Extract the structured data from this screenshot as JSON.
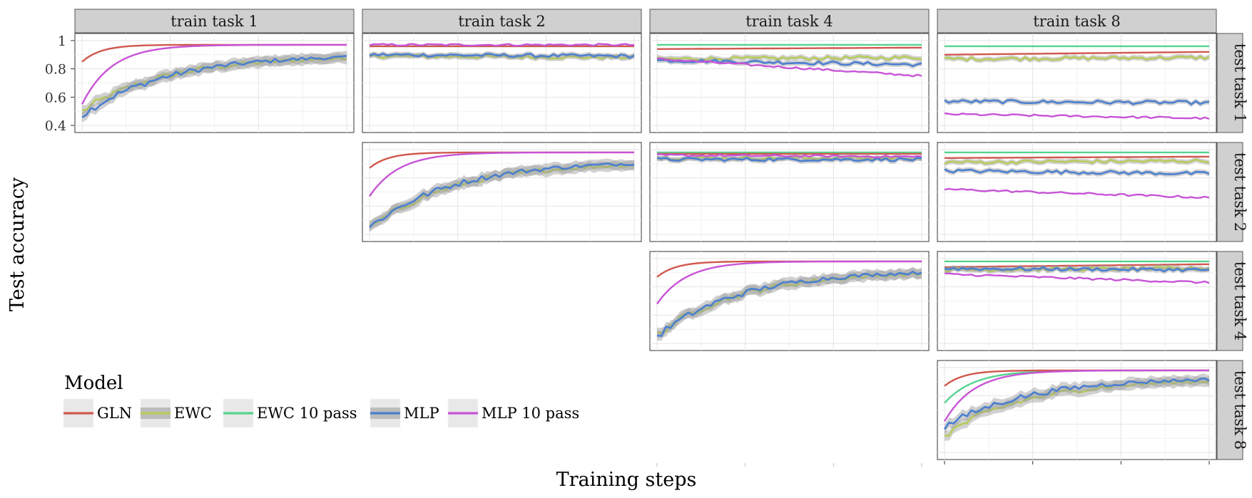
{
  "chart_data": {
    "type": "line",
    "title": "",
    "xlabel": "Training steps",
    "ylabel": "Test accuracy",
    "ylim": [
      0.35,
      1.05
    ],
    "y_ticks": [
      "1",
      "0.8",
      "0.6",
      "0.4"
    ],
    "y_tick_values": [
      1.0,
      0.8,
      0.6,
      0.4
    ],
    "column_labels": [
      "train task 1",
      "train task 2",
      "train task 4",
      "train task 8"
    ],
    "row_labels": [
      "test task 1",
      "test task 2",
      "test task 4",
      "test task 8"
    ],
    "legend": {
      "title": "Model",
      "entries": [
        {
          "name": "GLN",
          "color": "#d0584e"
        },
        {
          "name": "EWC",
          "color": "#b5cc5a"
        },
        {
          "name": "EWC 10 pass",
          "color": "#55d38f"
        },
        {
          "name": "MLP",
          "color": "#4a7fd0"
        },
        {
          "name": "MLP 10 pass",
          "color": "#c754d6"
        }
      ]
    },
    "panels": [
      {
        "row": 0,
        "col": 0,
        "shape": "learn",
        "series": {
          "GLN": [
            0.85,
            0.97
          ],
          "MLP 10 pass": [
            0.55,
            0.97
          ],
          "EWC": [
            0.5,
            0.89
          ],
          "MLP": [
            0.47,
            0.9
          ],
          "EWC 10 pass": null
        }
      },
      {
        "row": 0,
        "col": 1,
        "shape": "flat",
        "series": {
          "GLN": [
            0.96,
            0.96
          ],
          "MLP 10 pass": [
            0.97,
            0.97
          ],
          "EWC 10 pass": [
            0.96,
            0.96
          ],
          "EWC": [
            0.89,
            0.88
          ],
          "MLP": [
            0.9,
            0.89
          ]
        }
      },
      {
        "row": 0,
        "col": 2,
        "shape": "flat",
        "series": {
          "EWC 10 pass": [
            0.97,
            0.97
          ],
          "GLN": [
            0.94,
            0.95
          ],
          "EWC": [
            0.87,
            0.88
          ],
          "MLP": [
            0.86,
            0.83
          ],
          "MLP 10 pass": [
            0.87,
            0.75
          ]
        }
      },
      {
        "row": 0,
        "col": 3,
        "shape": "flat",
        "series": {
          "EWC 10 pass": [
            0.96,
            0.96
          ],
          "GLN": [
            0.9,
            0.92
          ],
          "EWC": [
            0.87,
            0.88
          ],
          "MLP": [
            0.57,
            0.56
          ],
          "MLP 10 pass": [
            0.48,
            0.45
          ]
        }
      },
      {
        "row": 1,
        "col": 1,
        "shape": "learn",
        "series": {
          "GLN": [
            0.87,
            0.98
          ],
          "MLP 10 pass": [
            0.67,
            0.98
          ],
          "EWC": [
            0.44,
            0.91
          ],
          "MLP": [
            0.45,
            0.92
          ],
          "EWC 10 pass": null
        }
      },
      {
        "row": 1,
        "col": 2,
        "shape": "flat",
        "series": {
          "EWC 10 pass": [
            0.98,
            0.98
          ],
          "GLN": [
            0.97,
            0.97
          ],
          "MLP 10 pass": [
            0.96,
            0.95
          ],
          "EWC": [
            0.94,
            0.94
          ],
          "MLP": [
            0.93,
            0.93
          ]
        }
      },
      {
        "row": 1,
        "col": 3,
        "shape": "flat",
        "series": {
          "EWC 10 pass": [
            0.98,
            0.98
          ],
          "GLN": [
            0.94,
            0.95
          ],
          "EWC": [
            0.91,
            0.92
          ],
          "MLP": [
            0.85,
            0.83
          ],
          "MLP 10 pass": [
            0.72,
            0.66
          ]
        }
      },
      {
        "row": 2,
        "col": 2,
        "shape": "learn",
        "series": {
          "GLN": [
            0.87,
            0.98
          ],
          "MLP 10 pass": [
            0.68,
            0.98
          ],
          "EWC": [
            0.46,
            0.91
          ],
          "MLP": [
            0.45,
            0.92
          ],
          "EWC 10 pass": null
        }
      },
      {
        "row": 2,
        "col": 3,
        "shape": "flat",
        "series": {
          "EWC 10 pass": [
            0.98,
            0.98
          ],
          "GLN": [
            0.94,
            0.96
          ],
          "EWC": [
            0.92,
            0.93
          ],
          "MLP": [
            0.93,
            0.92
          ],
          "MLP 10 pass": [
            0.89,
            0.83
          ]
        }
      },
      {
        "row": 3,
        "col": 3,
        "shape": "learn",
        "series": {
          "GLN": [
            0.87,
            0.98
          ],
          "EWC 10 pass": [
            0.75,
            0.98
          ],
          "MLP 10 pass": [
            0.62,
            0.98
          ],
          "EWC": [
            0.52,
            0.92
          ],
          "MLP": [
            0.58,
            0.93
          ]
        }
      }
    ]
  }
}
